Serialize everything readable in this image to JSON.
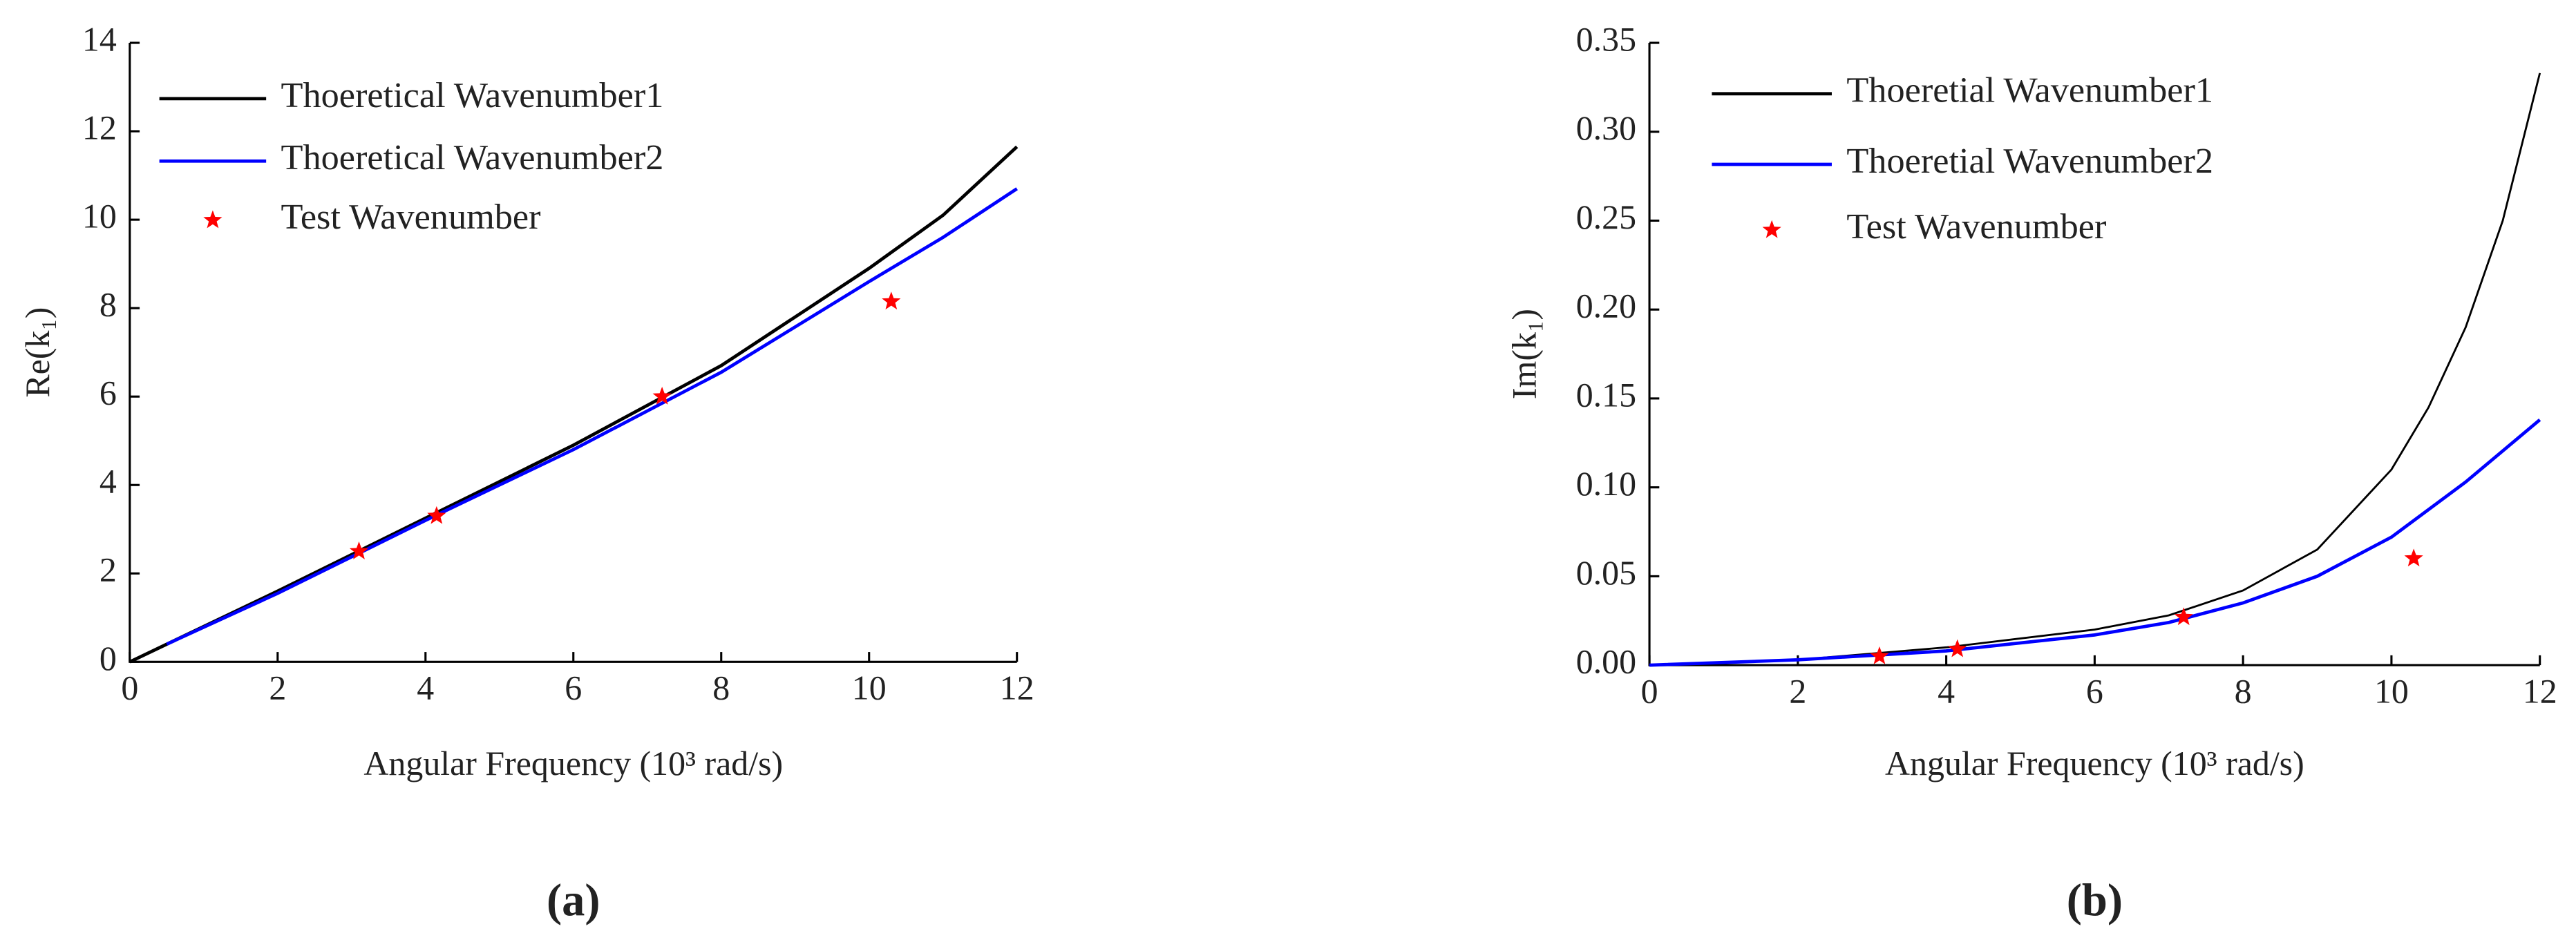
{
  "chart_data": [
    {
      "type": "line",
      "panel_label": "(a)",
      "xlabel": "Angular Frequency (10³ rad/s)",
      "ylabel": "Re(k₁)",
      "xlim": [
        0,
        12
      ],
      "xticks": [
        0,
        2,
        4,
        6,
        8,
        10,
        12
      ],
      "ylim": [
        0,
        14
      ],
      "yticks": [
        0,
        2,
        4,
        6,
        8,
        10,
        12,
        14
      ],
      "grid": false,
      "legend": "upper left",
      "series": [
        {
          "name": "Thoeretical Wavenumber1",
          "color": "#000000",
          "x": [
            0,
            2,
            4,
            6,
            8,
            10,
            11,
            12
          ],
          "values": [
            0,
            1.6,
            3.25,
            4.9,
            6.7,
            8.9,
            10.1,
            11.65
          ]
        },
        {
          "name": "Thoeretical Wavenumber2",
          "color": "#0000ff",
          "x": [
            0.5,
            2,
            4,
            6,
            8,
            10,
            11,
            12
          ],
          "values": [
            0.4,
            1.55,
            3.2,
            4.8,
            6.55,
            8.6,
            9.6,
            10.7
          ]
        },
        {
          "name": "Test Wavenumber",
          "color": "#ff0000",
          "marker": "star",
          "x": [
            3.1,
            4.15,
            7.2,
            10.3
          ],
          "values": [
            2.5,
            3.3,
            6.0,
            8.15
          ]
        }
      ]
    },
    {
      "type": "line",
      "panel_label": "(b)",
      "xlabel": "Angular Frequency (10³ rad/s)",
      "ylabel": "Im(k₁)",
      "xlim": [
        0,
        12
      ],
      "xticks": [
        0,
        2,
        4,
        6,
        8,
        10,
        12
      ],
      "ylim": [
        0,
        0.35
      ],
      "yticks": [
        {
          "value": 0,
          "label": "0.00"
        },
        0.05,
        {
          "value": 0.1,
          "label": "0.10"
        },
        0.15,
        {
          "value": 0.2,
          "label": "0.20"
        },
        0.25,
        {
          "value": 0.3,
          "label": "0.30"
        },
        0.35
      ],
      "grid": false,
      "legend": "upper left",
      "series": [
        {
          "name": "Thoeretial Wavenumber1",
          "color": "#000000",
          "x": [
            0,
            2,
            4,
            6,
            7,
            8,
            9,
            10,
            10.5,
            11,
            11.5,
            12
          ],
          "values": [
            0,
            0.003,
            0.01,
            0.02,
            0.028,
            0.042,
            0.065,
            0.11,
            0.145,
            0.19,
            0.25,
            0.333
          ]
        },
        {
          "name": "Thoeretial Wavenumber2",
          "color": "#0000ff",
          "x": [
            0,
            2,
            4,
            6,
            7,
            8,
            9,
            10,
            11,
            12
          ],
          "values": [
            0,
            0.003,
            0.008,
            0.017,
            0.024,
            0.035,
            0.05,
            0.072,
            0.103,
            0.138
          ]
        },
        {
          "name": "Test Wavenumber",
          "color": "#ff0000",
          "marker": "star",
          "x": [
            3.1,
            4.15,
            7.2,
            10.3
          ],
          "values": [
            0.005,
            0.009,
            0.027,
            0.06
          ]
        }
      ]
    }
  ]
}
